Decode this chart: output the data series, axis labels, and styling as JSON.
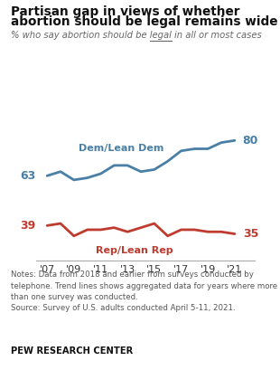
{
  "title_line1": "Partisan gap in views of whether",
  "title_line2": "abortion should be legal remains wide",
  "subtitle_pre": "% who say abortion should be ",
  "subtitle_legal": "legal",
  "subtitle_post": " in all or most cases",
  "dem_label": "Dem/Lean Dem",
  "rep_label": "Rep/Lean Rep",
  "dem_color": "#4a7fa5",
  "rep_color": "#bf3b2f",
  "years": [
    2007,
    2008,
    2009,
    2010,
    2011,
    2012,
    2013,
    2014,
    2015,
    2016,
    2017,
    2018,
    2019,
    2020,
    2021
  ],
  "dem_values": [
    63,
    65,
    61,
    62,
    64,
    68,
    68,
    65,
    66,
    70,
    75,
    76,
    76,
    79,
    80
  ],
  "rep_values": [
    39,
    40,
    34,
    37,
    37,
    38,
    36,
    38,
    40,
    34,
    37,
    37,
    36,
    36,
    35
  ],
  "dem_start": "63",
  "dem_end": "80",
  "rep_start": "39",
  "rep_end": "35",
  "xtick_years": [
    2007,
    2009,
    2011,
    2013,
    2015,
    2017,
    2019,
    2021
  ],
  "xtick_labels": [
    "'07",
    "'09",
    "'11",
    "'13",
    "'15",
    "'17",
    "'19",
    "'21"
  ],
  "xlim": [
    2006.2,
    2022.5
  ],
  "ylim": [
    22,
    96
  ],
  "line_width": 2.0,
  "dem_ann_x": 2012.5,
  "dem_ann_y": 74,
  "rep_ann_x": 2013.5,
  "rep_ann_y": 29,
  "notes_line1": "Notes: Data from 2018 and earlier from surveys conducted by",
  "notes_line2": "telephone. Trend lines shows aggregated data for years where more",
  "notes_line3": "than one survey was conducted.",
  "notes_line4": "Source: Survey of U.S. adults conducted April 5-11, 2021.",
  "footer": "PEW RESEARCH CENTER",
  "bg": "#ffffff",
  "text_dark": "#111111",
  "text_gray": "#555555",
  "sub_color": "#666666"
}
